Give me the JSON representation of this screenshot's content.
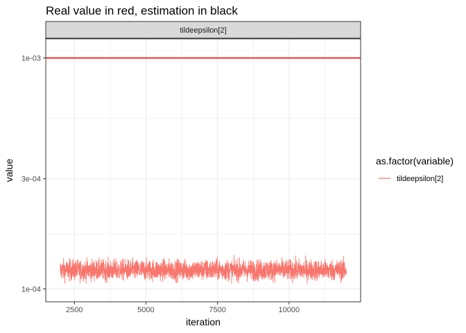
{
  "chart_data": {
    "type": "line",
    "title": "Real value in red, estimation in black",
    "xlabel": "iteration",
    "ylabel": "value",
    "facet_label": "tildeepsilon[2]",
    "x_ticks": [
      2500,
      5000,
      7500,
      10000
    ],
    "x_tick_labels": [
      "2500",
      "5000",
      "7500",
      "10000"
    ],
    "y_ticks": [
      0.0001,
      0.0003,
      0.001
    ],
    "y_tick_labels": [
      "1e-04",
      "3e-04",
      "1e-03"
    ],
    "y_scale": "log10",
    "xlim": [
      1500,
      12500
    ],
    "ylim": [
      8.8e-05,
      0.00121
    ],
    "grid": true,
    "legend": {
      "title": "as.factor(variable)",
      "position": "right",
      "entries": [
        {
          "label": "tildeepsilon[2]",
          "color": "#F8766D"
        }
      ]
    },
    "series": [
      {
        "name": "tildeepsilon[2]",
        "color": "#F8766D",
        "x_range": [
          2000,
          12000
        ],
        "typical_range": [
          0.000108,
          0.000135
        ],
        "min": 9.15e-05,
        "max": 0.000146
      }
    ],
    "reference_line": {
      "y": 0.001,
      "color": "#FF0000"
    }
  }
}
